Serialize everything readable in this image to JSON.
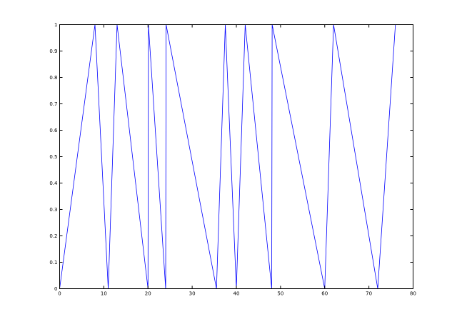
{
  "chart_data": {
    "type": "line",
    "title": "",
    "xlabel": "",
    "ylabel": "",
    "xlim": [
      0,
      80
    ],
    "ylim": [
      0,
      1
    ],
    "grid": false,
    "legend": "none",
    "x_ticks": [
      {
        "value": 0,
        "label": "0"
      },
      {
        "value": 10,
        "label": "10"
      },
      {
        "value": 20,
        "label": "20"
      },
      {
        "value": 30,
        "label": "30"
      },
      {
        "value": 40,
        "label": "40"
      },
      {
        "value": 50,
        "label": "50"
      },
      {
        "value": 60,
        "label": "60"
      },
      {
        "value": 70,
        "label": "70"
      },
      {
        "value": 80,
        "label": "80"
      }
    ],
    "y_ticks": [
      {
        "value": 0,
        "label": "0"
      },
      {
        "value": 0.1,
        "label": "0.1"
      },
      {
        "value": 0.2,
        "label": "0.2"
      },
      {
        "value": 0.3,
        "label": "0.3"
      },
      {
        "value": 0.4,
        "label": "0.4"
      },
      {
        "value": 0.5,
        "label": "0.5"
      },
      {
        "value": 0.6,
        "label": "0.6"
      },
      {
        "value": 0.7,
        "label": "0.7"
      },
      {
        "value": 0.8,
        "label": "0.8"
      },
      {
        "value": 0.9,
        "label": "0.9"
      },
      {
        "value": 1,
        "label": "1"
      }
    ],
    "series": [
      {
        "color": "#0000ff",
        "x": [
          0,
          8,
          11,
          13,
          20,
          20.1,
          24,
          24.1,
          35.5,
          37.5,
          40,
          42,
          48,
          48.1,
          60,
          62,
          72,
          76
        ],
        "y": [
          0,
          1,
          0,
          1,
          0,
          1,
          0,
          1,
          0,
          1,
          0,
          1,
          0,
          1,
          0,
          1,
          0,
          1
        ]
      }
    ]
  }
}
